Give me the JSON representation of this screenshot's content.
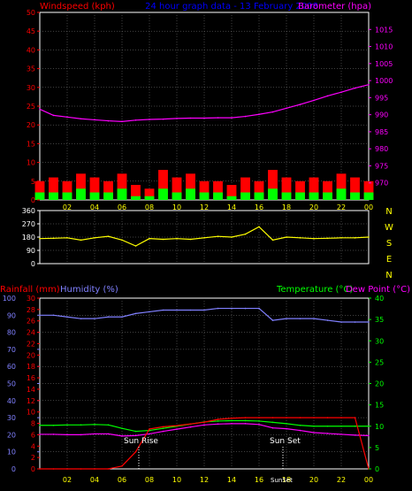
{
  "header": {
    "left": "Windspeed (kph)",
    "center": "24 hour graph data - 13 February 2008",
    "right": "Barometer (hpa)"
  },
  "bottom_header": {
    "rainfall": "Rainfall (mm)",
    "humidity": "Humidity (%)",
    "temperature": "Temperature (°C)",
    "dewpoint": "Dew Point (°C)"
  },
  "annotations": {
    "sunrise": "Sun Rise",
    "sunset": "Sun Set",
    "sunset_axis": "SunSet"
  },
  "colors": {
    "background": "#000000",
    "grid": "#808080",
    "plot_border": "#ffffff",
    "windspeed_axis": "#ff0000",
    "barometer": "#ff00ff",
    "header_center": "#0000ff",
    "wind_gust": "#ff0000",
    "wind_avg": "#00ff00",
    "wind_light": "#ffffff",
    "direction": "#ffff00",
    "rainfall": "#ff0000",
    "humidity": "#8080ff",
    "temperature": "#00ff00",
    "dewpoint": "#ff00ff",
    "x_ticks": "#ffff00"
  },
  "chart_data": [
    {
      "type": "bar",
      "name": "windspeed",
      "x": [
        0,
        1,
        2,
        3,
        4,
        5,
        6,
        7,
        8,
        9,
        10,
        11,
        12,
        13,
        14,
        15,
        16,
        17,
        18,
        19,
        20,
        21,
        22,
        23,
        24
      ],
      "x_tick_labels": [
        "02",
        "04",
        "06",
        "08",
        "10",
        "12",
        "14",
        "16",
        "18",
        "20",
        "22",
        "00"
      ],
      "ylim": [
        0,
        50
      ],
      "y_ticks": [
        0,
        5,
        10,
        15,
        20,
        25,
        30,
        35,
        40,
        45,
        50
      ],
      "series": [
        {
          "values": [
            5,
            6,
            5,
            7,
            6,
            5,
            7,
            4,
            3,
            8,
            6,
            7,
            5,
            5,
            4,
            6,
            5,
            8,
            6,
            5,
            6,
            5,
            7,
            6,
            5
          ]
        },
        {
          "values": [
            2,
            2,
            2,
            3,
            2,
            2,
            3,
            1,
            1,
            3,
            2,
            3,
            2,
            2,
            1,
            2,
            2,
            3,
            2,
            2,
            2,
            2,
            3,
            2,
            2
          ]
        }
      ],
      "grid": true
    },
    {
      "type": "line",
      "name": "barometer",
      "x": [
        0,
        1,
        2,
        3,
        4,
        5,
        6,
        7,
        8,
        9,
        10,
        11,
        12,
        13,
        14,
        15,
        16,
        17,
        18,
        19,
        20,
        21,
        22,
        23,
        24
      ],
      "values": [
        991.6,
        989.8,
        989.3,
        988.8,
        988.5,
        988.2,
        988.0,
        988.4,
        988.6,
        988.7,
        988.9,
        989.0,
        989.0,
        989.1,
        989.1,
        989.5,
        990.1,
        990.8,
        991.9,
        993.0,
        994.2,
        995.5,
        996.6,
        997.8,
        998.8
      ],
      "ylim": [
        965,
        1020
      ],
      "y_ticks": [
        970,
        975,
        980,
        985,
        990,
        995,
        1000,
        1005,
        1010,
        1015
      ],
      "axis_side": "right"
    },
    {
      "type": "line",
      "name": "wind direction",
      "x": [
        0,
        1,
        2,
        3,
        4,
        5,
        6,
        7,
        8,
        9,
        10,
        11,
        12,
        13,
        14,
        15,
        16,
        17,
        18,
        19,
        20,
        21,
        22,
        23,
        24
      ],
      "values": [
        170,
        172,
        175,
        160,
        175,
        185,
        160,
        120,
        170,
        165,
        170,
        165,
        175,
        185,
        180,
        200,
        250,
        160,
        180,
        175,
        170,
        172,
        175,
        175,
        180
      ],
      "ylim": [
        0,
        360
      ],
      "y_ticks": [
        0,
        90,
        180,
        270,
        360
      ],
      "compass_labels": [
        "N",
        "W",
        "S",
        "E",
        "N"
      ],
      "grid": true
    },
    {
      "type": "line",
      "name": "humidity",
      "x": [
        0,
        1,
        2,
        3,
        4,
        5,
        6,
        7,
        8,
        9,
        10,
        11,
        12,
        13,
        14,
        15,
        16,
        17,
        18,
        19,
        20,
        21,
        22,
        23,
        24
      ],
      "values": [
        90,
        90,
        89,
        88,
        88,
        89,
        89,
        91,
        92,
        93,
        93,
        93,
        93,
        94,
        94,
        94,
        94,
        87,
        88,
        88,
        88,
        87,
        86,
        86,
        86
      ],
      "ylim": [
        0,
        100
      ],
      "y_ticks": [
        0,
        10,
        20,
        30,
        40,
        50,
        60,
        70,
        80,
        90,
        100
      ]
    },
    {
      "type": "line",
      "name": "rainfall",
      "x": [
        0,
        1,
        2,
        3,
        4,
        5,
        6,
        7,
        8,
        9,
        10,
        11,
        12,
        13,
        14,
        15,
        16,
        17,
        18,
        19,
        20,
        21,
        22,
        23,
        24
      ],
      "values": [
        0,
        0,
        0,
        0,
        0,
        0,
        0.5,
        3,
        7,
        7.4,
        7.6,
        7.9,
        8.2,
        8.7,
        8.9,
        9,
        9,
        9,
        9,
        9,
        9,
        9,
        9,
        9,
        0
      ],
      "ylim": [
        0,
        30
      ],
      "y_ticks": [
        0,
        2,
        4,
        6,
        8,
        10,
        12,
        14,
        16,
        18,
        20,
        22,
        24,
        26,
        28,
        30
      ]
    },
    {
      "type": "line",
      "name": "temperature",
      "x": [
        0,
        1,
        2,
        3,
        4,
        5,
        6,
        7,
        8,
        9,
        10,
        11,
        12,
        13,
        14,
        15,
        16,
        17,
        18,
        19,
        20,
        21,
        22,
        23,
        24
      ],
      "values": [
        10.2,
        10.2,
        10.3,
        10.3,
        10.4,
        10.3,
        9.5,
        8.8,
        9.0,
        9.5,
        10.0,
        10.5,
        11.0,
        11.2,
        11.3,
        11.3,
        11.2,
        10.9,
        10.6,
        10.2,
        10.0,
        10.0,
        10.0,
        10.0,
        10.0
      ],
      "ylim": [
        0,
        40
      ],
      "y_ticks": [
        0,
        5,
        10,
        15,
        20,
        25,
        30,
        35,
        40
      ],
      "axis_side": "right"
    },
    {
      "type": "line",
      "name": "dew point",
      "x": [
        0,
        1,
        2,
        3,
        4,
        5,
        6,
        7,
        8,
        9,
        10,
        11,
        12,
        13,
        14,
        15,
        16,
        17,
        18,
        19,
        20,
        21,
        22,
        23,
        24
      ],
      "values": [
        8.1,
        8.1,
        8.0,
        8.0,
        8.2,
        8.2,
        7.7,
        7.8,
        8.2,
        8.8,
        9.3,
        9.8,
        10.3,
        10.5,
        10.6,
        10.6,
        10.4,
        9.6,
        9.4,
        9.0,
        8.5,
        8.3,
        8.1,
        7.9,
        7.8
      ],
      "ylim": [
        0,
        40
      ],
      "axis_side": "right"
    }
  ]
}
